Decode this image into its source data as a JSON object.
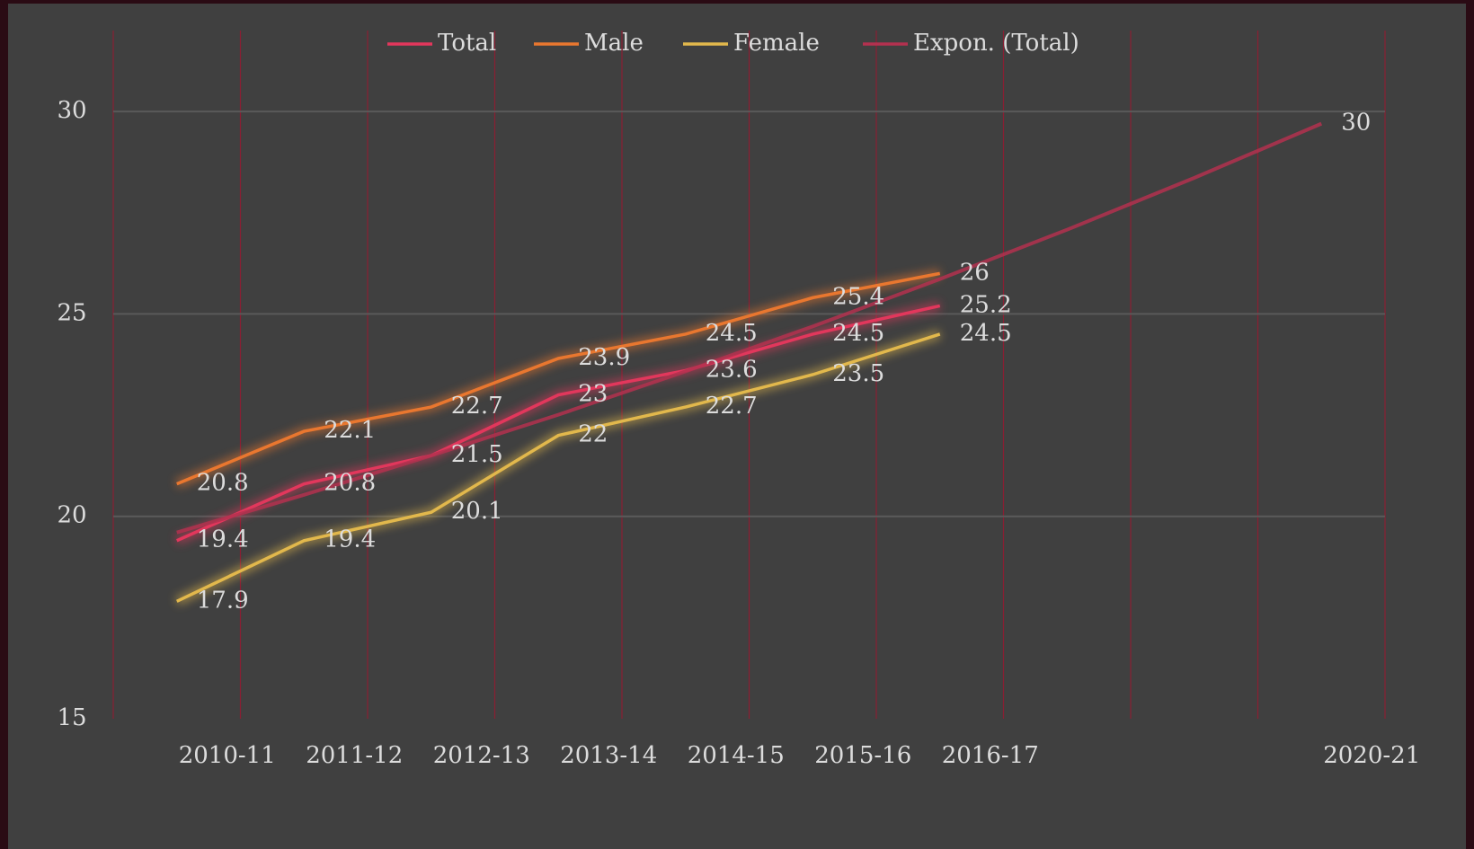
{
  "chart_data": {
    "type": "line",
    "categories": [
      "2010-11",
      "2011-12",
      "2012-13",
      "2013-14",
      "2014-15",
      "2015-16",
      "2016-17",
      null,
      null,
      "2020-21"
    ],
    "series": [
      {
        "name": "Total",
        "color": "#e2375c",
        "values": [
          19.4,
          20.8,
          21.5,
          23,
          23.6,
          24.5,
          25.2,
          null,
          null,
          null
        ]
      },
      {
        "name": "Male",
        "color": "#e9772f",
        "values": [
          20.8,
          22.1,
          22.7,
          23.9,
          24.5,
          25.4,
          26,
          null,
          null,
          null
        ]
      },
      {
        "name": "Female",
        "color": "#e2b84c",
        "values": [
          17.9,
          19.4,
          20.1,
          22,
          22.7,
          23.5,
          24.5,
          null,
          null,
          null
        ]
      },
      {
        "name": "Expon. (Total)",
        "color": "#b3314f",
        "values": [
          19.6,
          20.53,
          21.5,
          22.51,
          23.58,
          24.69,
          25.86,
          27.08,
          28.36,
          29.7
        ],
        "value_labels": [
          null,
          null,
          null,
          null,
          null,
          null,
          null,
          null,
          null,
          "30"
        ]
      }
    ],
    "ylim": [
      15,
      32
    ],
    "yticks": [
      15,
      20,
      25,
      30
    ],
    "grid": true,
    "legend": "top"
  }
}
